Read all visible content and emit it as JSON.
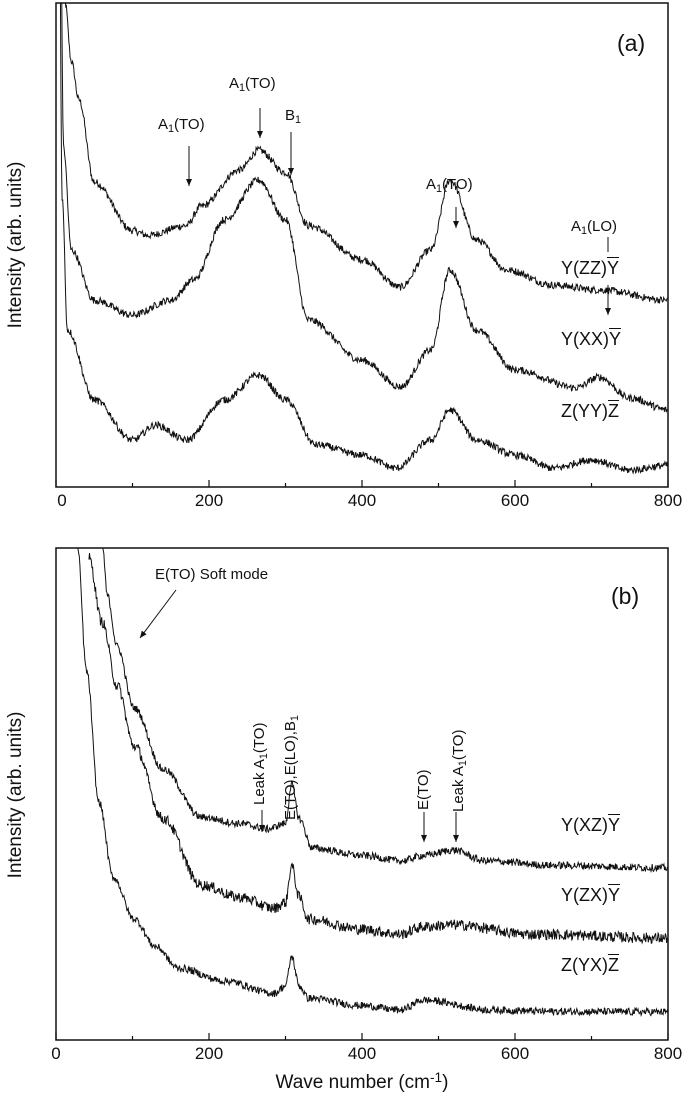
{
  "chart_data": [
    {
      "type": "line",
      "panel_label": "(a)",
      "xlabel": "",
      "ylabel": "Intensity (arb. units)",
      "xlim": [
        0,
        800
      ],
      "ylim": [
        0,
        100
      ],
      "xticks": [
        "0",
        "200",
        "400",
        "600",
        "800"
      ],
      "yticks": [],
      "grid": false,
      "series": [
        {
          "name": "Y(ZZ)Y",
          "label_main": "Y(ZZ)",
          "label_bar": "Y",
          "x": [
            8,
            12,
            20,
            30,
            50,
            100,
            120,
            170,
            190,
            240,
            265,
            300,
            330,
            400,
            450,
            490,
            515,
            550,
            590,
            650,
            710,
            800
          ],
          "y": [
            130,
            100,
            88,
            80,
            63,
            53,
            52,
            54,
            58,
            65.5,
            69.6,
            65,
            54,
            47,
            41.3,
            49,
            63.4,
            51,
            44.8,
            41.7,
            40.7,
            38.6
          ]
        },
        {
          "name": "Y(XX)Y",
          "label_main": "Y(XX)",
          "label_bar": "Y",
          "x": [
            5,
            10,
            20,
            50,
            100,
            150,
            180,
            220,
            265,
            300,
            330,
            400,
            450,
            490,
            515,
            550,
            600,
            680,
            710,
            750,
            800
          ],
          "y": [
            130,
            70,
            49,
            38.6,
            35.5,
            38.6,
            42.8,
            55.2,
            63.4,
            55.2,
            34.5,
            26.2,
            20.7,
            28.3,
            44.8,
            32.4,
            24.2,
            20.5,
            22.7,
            18.4,
            15.9
          ]
        },
        {
          "name": "Z(YY)Z",
          "label_main": "Z(YY)",
          "label_bar": "Z",
          "x": [
            4,
            8,
            15,
            50,
            100,
            130,
            170,
            220,
            265,
            300,
            340,
            400,
            445,
            490,
            515,
            550,
            600,
            650,
            700,
            750,
            800
          ],
          "y": [
            130,
            60,
            32.4,
            18,
            9.7,
            12.8,
            9.7,
            18,
            23.1,
            18,
            8.7,
            6.6,
            3.9,
            9.7,
            15.9,
            9.7,
            6.6,
            3.9,
            5.6,
            3.5,
            4.5
          ]
        }
      ],
      "annotations": [
        {
          "main": "A",
          "sub": "1",
          "rest": "(TO)",
          "x": 170
        },
        {
          "main": "A",
          "sub": "1",
          "rest": "(TO)",
          "x": 265
        },
        {
          "main": "B",
          "sub": "1",
          "rest": "",
          "x": 300
        },
        {
          "main": "A",
          "sub": "1",
          "rest": "(TO)",
          "x": 515
        },
        {
          "main": "A",
          "sub": "1",
          "rest": "(LO)",
          "x": 715
        }
      ]
    },
    {
      "type": "line",
      "panel_label": "(b)",
      "xlabel_main": "Wave number (cm",
      "xlabel_sup": "-1",
      "xlabel_end": ")",
      "ylabel": "Intensity (arb. units)",
      "xlim": [
        0,
        800
      ],
      "ylim": [
        0,
        100
      ],
      "xticks": [
        "0",
        "200",
        "400",
        "600",
        "800"
      ],
      "yticks": [],
      "grid": false,
      "series": [
        {
          "name": "Y(XZ)Y",
          "label_main": "Y(XZ)",
          "label_bar": "Y",
          "x": [
            61,
            67,
            80,
            102,
            140,
            190,
            240,
            277,
            300,
            308,
            318,
            335,
            400,
            452,
            480,
            520,
            560,
            650,
            800
          ],
          "y": [
            100,
            90.4,
            80,
            67.5,
            55,
            45.3,
            44,
            42.9,
            44,
            52,
            45,
            39,
            37.5,
            36.4,
            37.5,
            38.6,
            36.4,
            35.5,
            35
          ]
        },
        {
          "name": "Y(ZX)Y",
          "label_main": "Y(ZX)",
          "label_bar": "Y",
          "x": [
            43,
            60,
            80,
            102,
            140,
            190,
            240,
            285,
            300,
            308,
            318,
            330,
            400,
            450,
            480,
            520,
            620,
            800
          ],
          "y": [
            98,
            85,
            72,
            59.8,
            45,
            31.5,
            29,
            26.8,
            28,
            35.4,
            29,
            24.6,
            22.5,
            21.5,
            23,
            23.4,
            21.5,
            20.7
          ]
        },
        {
          "name": "Z(YX)Z",
          "label_main": "Z(YX)",
          "label_bar": "Z",
          "x": [
            28,
            40,
            56,
            75,
            102,
            130,
            160,
            220,
            285,
            300,
            308,
            318,
            330,
            400,
            450,
            480,
            570,
            650,
            800
          ],
          "y": [
            100,
            75,
            48.4,
            33,
            24.6,
            19,
            14.6,
            12,
            9.5,
            11,
            16.9,
            11,
            8.5,
            7,
            6.1,
            8.1,
            6.1,
            5.8,
            5.7
          ]
        }
      ],
      "annotations": [
        {
          "text": "E(TO) Soft mode"
        },
        {
          "main": "Leak A",
          "sub": "1",
          "rest": "(TO)",
          "x": 270
        },
        {
          "main": "E(TO),E(LO),B",
          "sub": "1",
          "rest": "",
          "x": 308
        },
        {
          "main": "E(TO)",
          "sub": "",
          "rest": "",
          "x": 480
        },
        {
          "main": "Leak A",
          "sub": "1",
          "rest": "(TO)",
          "x": 520
        }
      ]
    }
  ]
}
